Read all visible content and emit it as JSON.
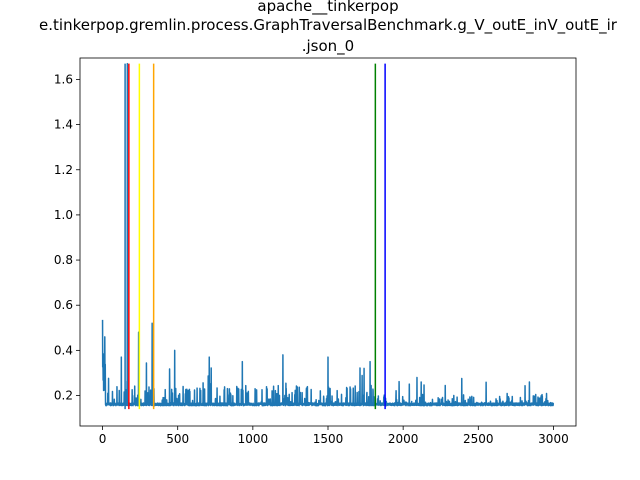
{
  "chart_data": {
    "type": "line",
    "title_lines": [
      "apache__tinkerpop",
      "e.tinkerpop.gremlin.process.GraphTraversalBenchmark.g_V_outE_inV_outE_ir",
      ".json_0"
    ],
    "xlabel": "",
    "ylabel": "",
    "xlim": [
      -150,
      3150
    ],
    "ylim": [
      0.065,
      1.695
    ],
    "x_ticks": [
      0,
      500,
      1000,
      1500,
      2000,
      2500,
      3000
    ],
    "y_ticks": [
      0.2,
      0.4,
      0.6,
      0.8,
      1.0,
      1.2,
      1.4,
      1.6
    ],
    "y_tick_labels": [
      "0.2",
      "0.4",
      "0.6",
      "0.8",
      "1.0",
      "1.2",
      "1.4",
      "1.6"
    ],
    "series": [
      {
        "color": "#1f77b4",
        "n_points": 3000,
        "baseline": 0.155,
        "initial_value": 0.535,
        "spike_summary": [
          {
            "x": 0,
            "y": 0.535
          },
          {
            "x": 15,
            "y": 0.46
          },
          {
            "x": 125,
            "y": 0.37
          },
          {
            "x": 165,
            "y": 1.67
          },
          {
            "x": 240,
            "y": 0.48
          },
          {
            "x": 330,
            "y": 0.52
          },
          {
            "x": 480,
            "y": 0.4
          },
          {
            "x": 710,
            "y": 0.37
          },
          {
            "x": 930,
            "y": 0.35
          },
          {
            "x": 1200,
            "y": 0.38
          },
          {
            "x": 1500,
            "y": 0.37
          },
          {
            "x": 1740,
            "y": 0.32
          },
          {
            "x": 1780,
            "y": 0.35
          },
          {
            "x": 2120,
            "y": 0.26
          },
          {
            "x": 2840,
            "y": 0.26
          }
        ]
      }
    ],
    "vertical_lines": [
      {
        "x": 150,
        "color": "#1f77b4"
      },
      {
        "x": 175,
        "color": "#ff0000"
      },
      {
        "x": 245,
        "color": "#ffff00"
      },
      {
        "x": 340,
        "color": "#ffa500"
      },
      {
        "x": 1815,
        "color": "#008000"
      },
      {
        "x": 1880,
        "color": "#0000ff"
      }
    ],
    "vline_range": [
      0.14,
      1.67
    ],
    "grid": false
  }
}
